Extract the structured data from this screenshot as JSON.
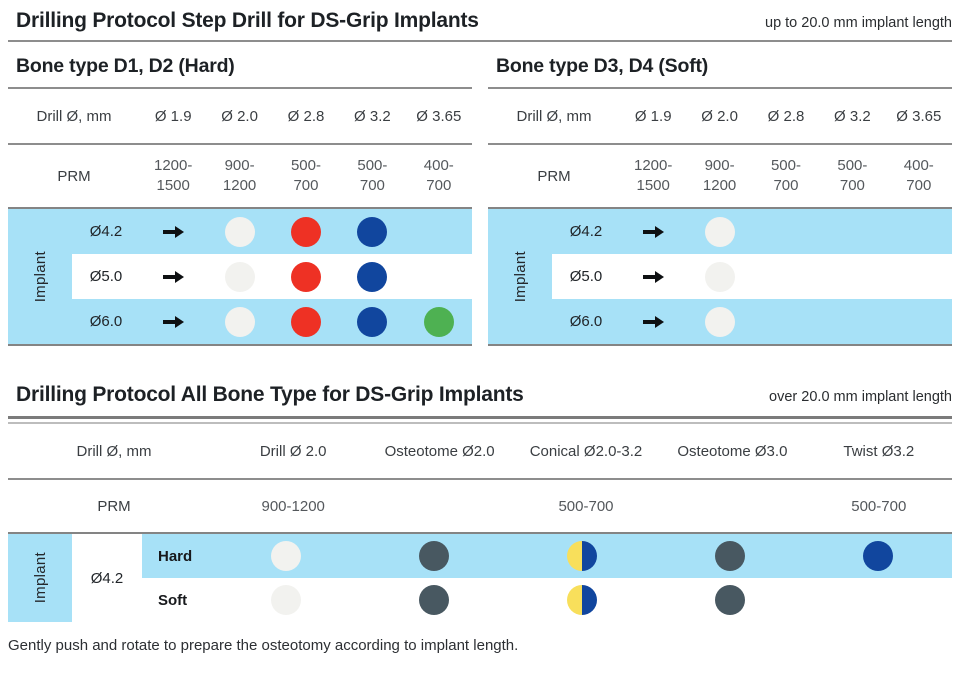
{
  "colors": {
    "band": "#a7e1f7",
    "white": "#f2f2ef",
    "red": "#ee3124",
    "blue": "#11469e",
    "green": "#4eb152",
    "slate": "#485861",
    "yellow": "#f8df5b"
  },
  "section1": {
    "title": "Drilling Protocol Step Drill for DS-Grip Implants",
    "length_note": "up to 20.0 mm implant length",
    "tables": [
      {
        "heading": "Bone type D1, D2 (Hard)",
        "drill_label": "Drill Ø, mm",
        "drill_columns": [
          "Ø 1.9",
          "Ø 2.0",
          "Ø 2.8",
          "Ø 3.2",
          "Ø 3.65"
        ],
        "prm_label": "PRM",
        "prm_values": [
          "1200-\n1500",
          "900-\n1200",
          "500-\n700",
          "500-\n700",
          "400-\n700"
        ],
        "implant_label": "Implant",
        "rows": [
          {
            "implant": "Ø4.2",
            "cells": [
              "arrow",
              "white",
              "red",
              "blue",
              ""
            ]
          },
          {
            "implant": "Ø5.0",
            "cells": [
              "arrow",
              "white",
              "red",
              "blue",
              ""
            ]
          },
          {
            "implant": "Ø6.0",
            "cells": [
              "arrow",
              "white",
              "red",
              "blue",
              "green"
            ]
          }
        ]
      },
      {
        "heading": "Bone type D3, D4 (Soft)",
        "drill_label": "Drill Ø, mm",
        "drill_columns": [
          "Ø 1.9",
          "Ø 2.0",
          "Ø 2.8",
          "Ø 3.2",
          "Ø 3.65"
        ],
        "prm_label": "PRM",
        "prm_values": [
          "1200-\n1500",
          "900-\n1200",
          "500-\n700",
          "500-\n700",
          "400-\n700"
        ],
        "implant_label": "Implant",
        "rows": [
          {
            "implant": "Ø4.2",
            "cells": [
              "arrow",
              "white",
              "",
              "",
              ""
            ]
          },
          {
            "implant": "Ø5.0",
            "cells": [
              "arrow",
              "white",
              "",
              "",
              ""
            ]
          },
          {
            "implant": "Ø6.0",
            "cells": [
              "arrow",
              "white",
              "",
              "",
              ""
            ]
          }
        ]
      }
    ]
  },
  "section2": {
    "title": "Drilling Protocol All Bone Type for DS-Grip Implants",
    "length_note": "over 20.0 mm implant length",
    "drill_label": "Drill Ø, mm",
    "drill_columns": [
      "Drill Ø 2.0",
      "Osteotome Ø2.0",
      "Conical Ø2.0-3.2",
      "Osteotome Ø3.0",
      "Twist Ø3.2"
    ],
    "prm_label": "PRM",
    "prm_values": [
      "900-1200",
      "",
      "500-700",
      "",
      "500-700"
    ],
    "implant_label": "Implant",
    "implant_size": "Ø4.2",
    "rows": [
      {
        "bone": "Hard",
        "cells": [
          "white",
          "slate",
          "yellow/blue",
          "slate",
          "blue"
        ]
      },
      {
        "bone": "Soft",
        "cells": [
          "white",
          "slate",
          "yellow/blue",
          "slate",
          ""
        ]
      }
    ]
  },
  "footer_note": "Gently push and rotate to prepare the osteotomy according to implant length."
}
